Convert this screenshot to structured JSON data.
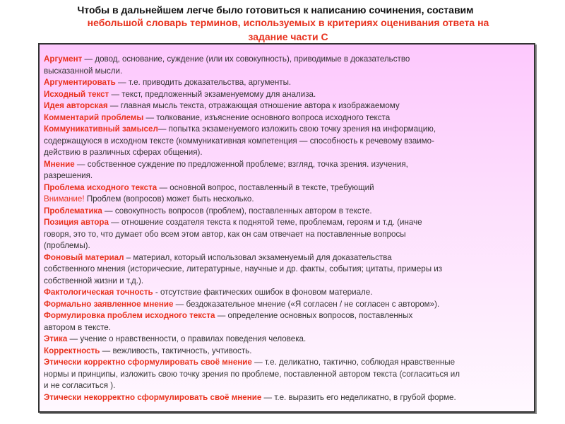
{
  "header": {
    "line1": "Чтобы в дальнейшем легче было готовиться к написанию сочинения, составим",
    "line2": "небольшой словарь терминов, используемых в критериях оценивания ответа на",
    "line3": "задание части С"
  },
  "glossary": [
    {
      "term": "Аргумент",
      "text": " — довод, основание, суждение (или их совокупность), приводимые в доказательство"
    },
    {
      "term": "",
      "text": "высказанной мысли."
    },
    {
      "term": "Аргументировать",
      "text": " — т.е. приводить доказательства, аргументы."
    },
    {
      "term": "Исходный текст",
      "text": " — текст, предложенный экзаменуемому для анализа."
    },
    {
      "term": "Идея авторская",
      "text": " — главная мысль текста, отражающая отношение автора к изображаемому"
    },
    {
      "term": "Комментарий проблемы",
      "text": " — толкование, изъяснение основного вопроса исходного текста"
    },
    {
      "term": "Коммуникативный замысел",
      "text": "— попытка экзаменуемого изложить свою точку зрения на информацию,"
    },
    {
      "term": "",
      "text": "содержащуюся в исходном тексте (коммуникативная компетенция — способность к речевому взаимо-"
    },
    {
      "term": "",
      "text": "действию в различных сферах общения)."
    },
    {
      "term": "Мнение",
      "text": " — собственное суждение по предложенной проблеме; взгляд, точка зрения. изучения,"
    },
    {
      "term": "",
      "text": " разрешения."
    },
    {
      "term": "Проблема исходного текста",
      "text": " — основной вопрос, поставленный в тексте, требующий"
    },
    {
      "warn": "Внимание!",
      "text": " Проблем (вопросов) может быть несколько."
    },
    {
      "term": "Проблематика",
      "text": " — совокупность вопросов (проблем), поставленных автором в тексте."
    },
    {
      "term": "Позиция автора",
      "text": " — отношение создателя текста к поднятой теме, проблемам, героям и т.д. (иначе"
    },
    {
      "term": "",
      "text": " говоря, это то, что думает обо всем этом автор, как он сам отвечает на поставленные вопросы"
    },
    {
      "term": "",
      "text": " (проблемы)."
    },
    {
      "term": "Фоновый материал",
      "text": " – материал, который использовал экзаменуемый для доказательства"
    },
    {
      "term": "",
      "text": "собственного мнения (исторические, литературные, научные и др. факты, события; цитаты, примеры из"
    },
    {
      "term": "",
      "text": "собственной жизни и т.д.)."
    },
    {
      "term": "Фактологическая точность",
      "text": " - отсутствие фактических ошибок в фоновом материале."
    },
    {
      "term": "Формально заявленное мнение",
      "text": " — бездоказательное мнение («Я согласен / не согласен с автором»)."
    },
    {
      "term": "Формулировка проблем исходного текста",
      "text": " — определение основных вопросов, поставленных"
    },
    {
      "term": "",
      "text": "автором в тексте."
    },
    {
      "term": "Этика",
      "text": " — учение о нравственности, о правилах поведения человека."
    },
    {
      "term": " Корректность",
      "text": " — вежливость, тактичность, учтивость."
    },
    {
      "term": " Этически корректно сформулировать своё мнение",
      "text": " — т.е. деликатно, тактично, соблюдая нравственные"
    },
    {
      "term": "",
      "text": "нормы и принципы, изложить свою точку зрения по проблеме, поставленной автором текста (согласиться ил"
    },
    {
      "term": "",
      "text": "и не согласиться )."
    },
    {
      "term": "Этически некорректно сформулировать своё мнение",
      "text": " — т.е. выразить его неделикатно, в грубой форме."
    }
  ]
}
